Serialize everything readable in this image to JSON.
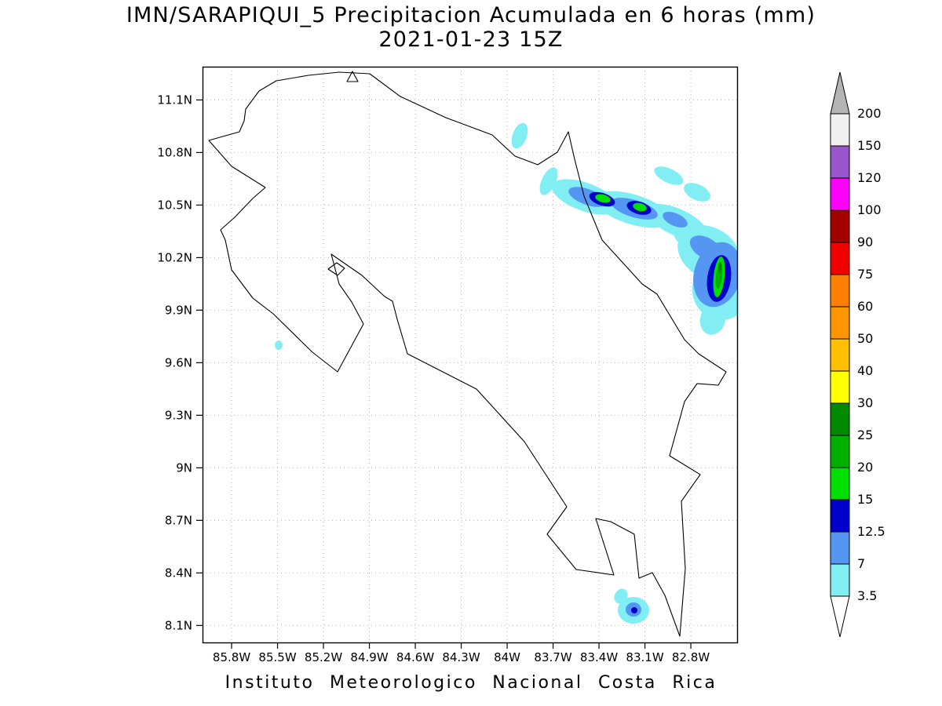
{
  "title": {
    "line1": "IMN/SARAPIQUI_5 Precipitacion Acumulada en 6 horas (mm)",
    "line2": "2021-01-23 15Z"
  },
  "footer": "Instituto Meteorologico Nacional Costa Rica",
  "chart_data": {
    "type": "heatmap",
    "title": "IMN/SARAPIQUI_5 Precipitacion Acumulada en 6 horas (mm)",
    "subtitle": "2021-01-23 15Z",
    "source_caption": "Instituto Meteorologico Nacional Costa Rica",
    "units": "mm",
    "region": "Costa Rica",
    "grid": true,
    "x_ticks": [
      "85.8W",
      "85.5W",
      "85.2W",
      "84.9W",
      "84.6W",
      "84.3W",
      "84W",
      "83.7W",
      "83.4W",
      "83.1W",
      "82.8W"
    ],
    "y_ticks": [
      "11.1N",
      "10.8N",
      "10.5N",
      "10.2N",
      "9.9N",
      "9.6N",
      "9.3N",
      "9N",
      "8.7N",
      "8.4N",
      "8.1N"
    ],
    "lon_range": [
      -86.0,
      -82.5
    ],
    "lat_range": [
      8.0,
      11.3
    ],
    "colorbar": {
      "position": "right",
      "levels": [
        3.5,
        7,
        12.5,
        15,
        20,
        25,
        30,
        40,
        50,
        60,
        75,
        90,
        100,
        120,
        150,
        200
      ],
      "segment_colors_bottom_to_top": [
        "#80eef2",
        "#5596f2",
        "#0000cc",
        "#00e000",
        "#00b000",
        "#008a00",
        "#ffff00",
        "#ffc000",
        "#ff9600",
        "#ff8000",
        "#f00000",
        "#a50000",
        "#ff00ff",
        "#9955cc",
        "#f0f0f0"
      ],
      "below_min_color": "#ffffff",
      "above_max_color": "#b4b4b4"
    },
    "precipitation_cells": [
      {
        "location": "NW core of Caribbean coastal band (offshore Tortuguero/Sarapiqui)",
        "lon": -83.38,
        "lat": 10.54,
        "max_mm": 20
      },
      {
        "location": "Second core of Caribbean coastal band",
        "lon": -83.14,
        "lat": 10.49,
        "max_mm": 20
      },
      {
        "location": "Large SE Caribbean cluster (offshore, NE of Limon)",
        "lon": -82.62,
        "lat": 10.09,
        "max_mm": 30
      },
      {
        "location": "Light band 3.5-7 mm stretching NW-SE along Caribbean coast",
        "lon": -83.1,
        "lat": 10.4,
        "max_mm": 7
      },
      {
        "location": "Small cell near south Caribbean / Burica area",
        "lon": -83.17,
        "lat": 8.19,
        "max_mm": 12.5
      },
      {
        "location": "Isolated light spot on Nicoya Peninsula",
        "lon": -85.49,
        "lat": 9.7,
        "max_mm": 3.5
      }
    ]
  }
}
